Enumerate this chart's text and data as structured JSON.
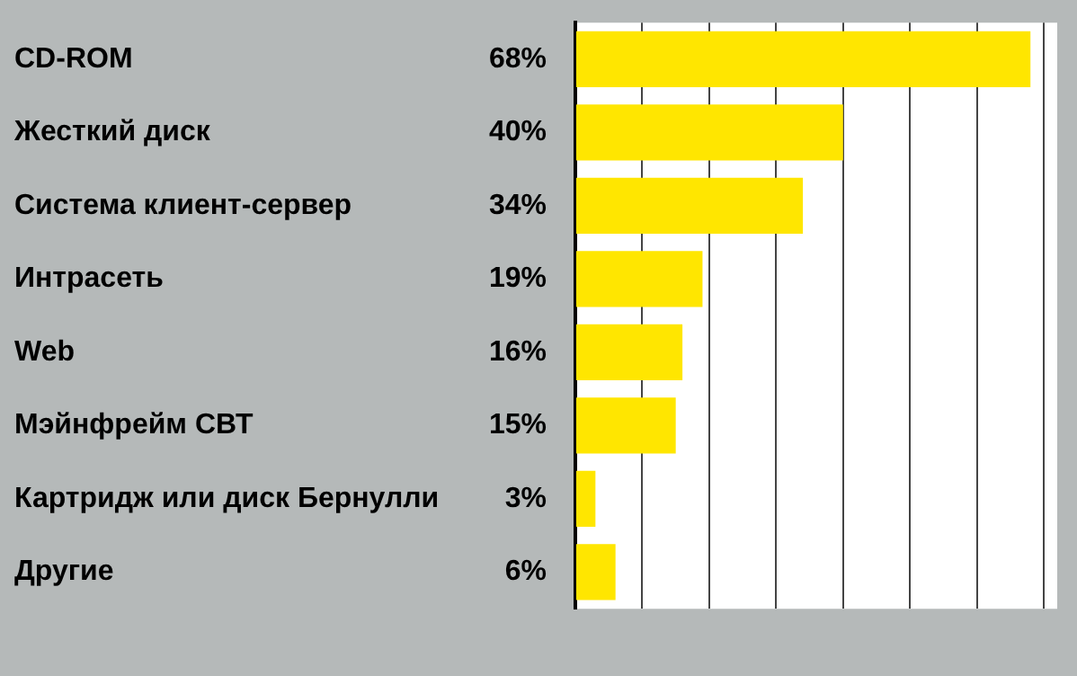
{
  "chart_data": {
    "type": "bar",
    "orientation": "horizontal",
    "categories": [
      "CD-ROM",
      "Жесткий диск",
      "Система клиент-сервер",
      "Интрасеть",
      "Web",
      "Мэйнфрейм СВТ",
      "Картридж или диск Бернулли",
      "Другие"
    ],
    "values": [
      68,
      40,
      34,
      19,
      16,
      15,
      3,
      6
    ],
    "value_labels": [
      "68%",
      "40%",
      "34%",
      "19%",
      "16%",
      "15%",
      "3%",
      "6%"
    ],
    "color": "#ffe600",
    "xlim": [
      0,
      72
    ],
    "xticks": [
      {
        "value": 0,
        "label": null
      },
      {
        "value": 10,
        "label": null
      },
      {
        "value": 20,
        "label": null
      },
      {
        "value": 30,
        "label": null
      },
      {
        "value": 40,
        "label": null
      },
      {
        "value": 50,
        "label": null
      },
      {
        "value": 60,
        "label": null
      },
      {
        "value": 70,
        "label": null
      }
    ],
    "grid": "x",
    "legend": false
  }
}
